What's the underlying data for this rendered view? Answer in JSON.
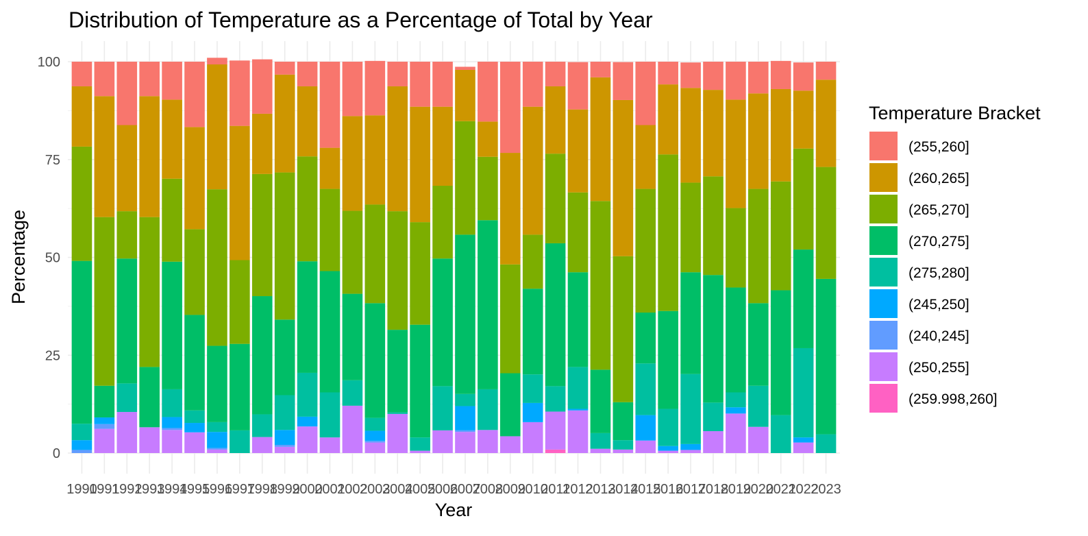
{
  "chart_data": {
    "type": "bar",
    "stacked": true,
    "title": "Distribution of Temperature as a Percentage of Total by Year",
    "xlabel": "Year",
    "ylabel": "Percentage",
    "ylim": [
      0,
      100
    ],
    "yticks": [
      "0",
      "25",
      "50",
      "75",
      "100"
    ],
    "grid": true,
    "legend_title": "Temperature Bracket",
    "legend_position": "right",
    "categories": [
      "1990",
      "1991",
      "1992",
      "1993",
      "1994",
      "1995",
      "1996",
      "1997",
      "1998",
      "1999",
      "2000",
      "2001",
      "2002",
      "2003",
      "2004",
      "2005",
      "2006",
      "2007",
      "2008",
      "2009",
      "2010",
      "2011",
      "2012",
      "2013",
      "2014",
      "2015",
      "2016",
      "2017",
      "2018",
      "2019",
      "2020",
      "2021",
      "2022",
      "2023"
    ],
    "series": [
      {
        "name": "(255,260]",
        "color": "#F8766D",
        "values": [
          6.3,
          8.8,
          16.2,
          8.8,
          9.7,
          16.7,
          1.7,
          16.7,
          13.9,
          3.3,
          6.3,
          22.0,
          13.9,
          13.9,
          6.3,
          11.5,
          11.5,
          0.8,
          15.3,
          23.3,
          11.5,
          6.3,
          12.1,
          4.0,
          9.7,
          16.2,
          5.8,
          6.5,
          7.2,
          9.7,
          8.1,
          7.2,
          7.2,
          4.6
        ]
      },
      {
        "name": "(260,265]",
        "color": "#CD9600",
        "values": [
          15.4,
          30.9,
          22.0,
          30.9,
          20.2,
          26.1,
          31.9,
          34.3,
          15.4,
          25.0,
          17.9,
          10.5,
          24.2,
          22.8,
          31.9,
          29.5,
          20.2,
          13.1,
          9.0,
          28.5,
          32.7,
          17.2,
          21.2,
          31.6,
          39.9,
          16.3,
          17.9,
          24.2,
          22.1,
          27.7,
          24.4,
          23.6,
          14.8,
          22.3
        ]
      },
      {
        "name": "(265,270]",
        "color": "#7CAE00",
        "values": [
          29.2,
          43.1,
          12.1,
          38.3,
          21.2,
          21.9,
          40.0,
          21.4,
          31.2,
          37.6,
          26.8,
          21.0,
          21.2,
          25.2,
          30.3,
          26.2,
          18.6,
          29.0,
          16.2,
          27.8,
          13.8,
          22.9,
          20.4,
          43.1,
          37.3,
          31.6,
          40.0,
          22.9,
          25.2,
          20.3,
          29.2,
          27.8,
          25.8,
          28.6
        ]
      },
      {
        "name": "(270,275]",
        "color": "#00BE67",
        "values": [
          41.6,
          8.1,
          31.9,
          15.4,
          32.6,
          24.4,
          19.5,
          22.1,
          30.2,
          19.3,
          28.5,
          31.0,
          22.1,
          29.3,
          21.1,
          28.8,
          32.6,
          40.7,
          43.2,
          16.1,
          21.9,
          36.5,
          24.2,
          16.2,
          9.7,
          13.0,
          25.0,
          26.0,
          32.6,
          26.8,
          21.1,
          31.9,
          25.2,
          39.7
        ]
      },
      {
        "name": "(275,280]",
        "color": "#00BFA0",
        "values": [
          4.2,
          0,
          7.3,
          0,
          7.1,
          3.2,
          2.5,
          5.8,
          5.8,
          8.9,
          11.2,
          11.5,
          6.5,
          3.3,
          0.4,
          3.4,
          11.3,
          3.1,
          10.4,
          0,
          7.3,
          6.5,
          10.7,
          4.0,
          2.4,
          13.2,
          9.5,
          17.9,
          7.3,
          3.8,
          10.5,
          9.7,
          22.8,
          4.8
        ]
      },
      {
        "name": "(245,250]",
        "color": "#00A9FF",
        "values": [
          2.5,
          1.7,
          0,
          0,
          2.8,
          2.4,
          4.1,
          0,
          0,
          3.8,
          2.5,
          0,
          0,
          2.6,
          0,
          0,
          0,
          6.2,
          0,
          0,
          4.9,
          0,
          0.4,
          0,
          0,
          6.5,
          1.2,
          1.5,
          0,
          1.6,
          0,
          0,
          1.3,
          0
        ]
      },
      {
        "name": "(240,245]",
        "color": "#619CFF",
        "values": [
          0.8,
          1.2,
          0,
          0,
          0.5,
          0,
          0.4,
          0,
          0,
          0.5,
          0,
          0,
          0,
          0.4,
          0,
          0,
          0,
          0.4,
          0,
          0,
          0,
          0,
          0,
          0,
          0,
          0,
          0,
          0,
          0,
          0,
          0,
          0,
          0,
          0
        ]
      },
      {
        "name": "(250,255]",
        "color": "#C77CFF",
        "values": [
          0,
          6.2,
          10.5,
          6.6,
          5.9,
          5.3,
          0.9,
          0,
          4.1,
          1.6,
          6.8,
          4.0,
          12.1,
          2.7,
          10.0,
          0.6,
          5.8,
          5.4,
          5.9,
          4.3,
          7.9,
          9.7,
          10.9,
          1.1,
          0.9,
          3.2,
          0.6,
          0.8,
          5.6,
          10.1,
          6.7,
          0,
          2.7,
          0
        ]
      },
      {
        "name": "(259.998,260]",
        "color": "#FF61C3",
        "values": [
          0,
          0,
          0,
          0,
          0,
          0,
          0,
          0,
          0,
          0,
          0,
          0,
          0,
          0,
          0,
          0,
          0,
          0,
          0,
          0,
          0,
          0.9,
          0,
          0,
          0,
          0,
          0,
          0,
          0,
          0,
          0,
          0,
          0,
          0
        ]
      }
    ]
  }
}
